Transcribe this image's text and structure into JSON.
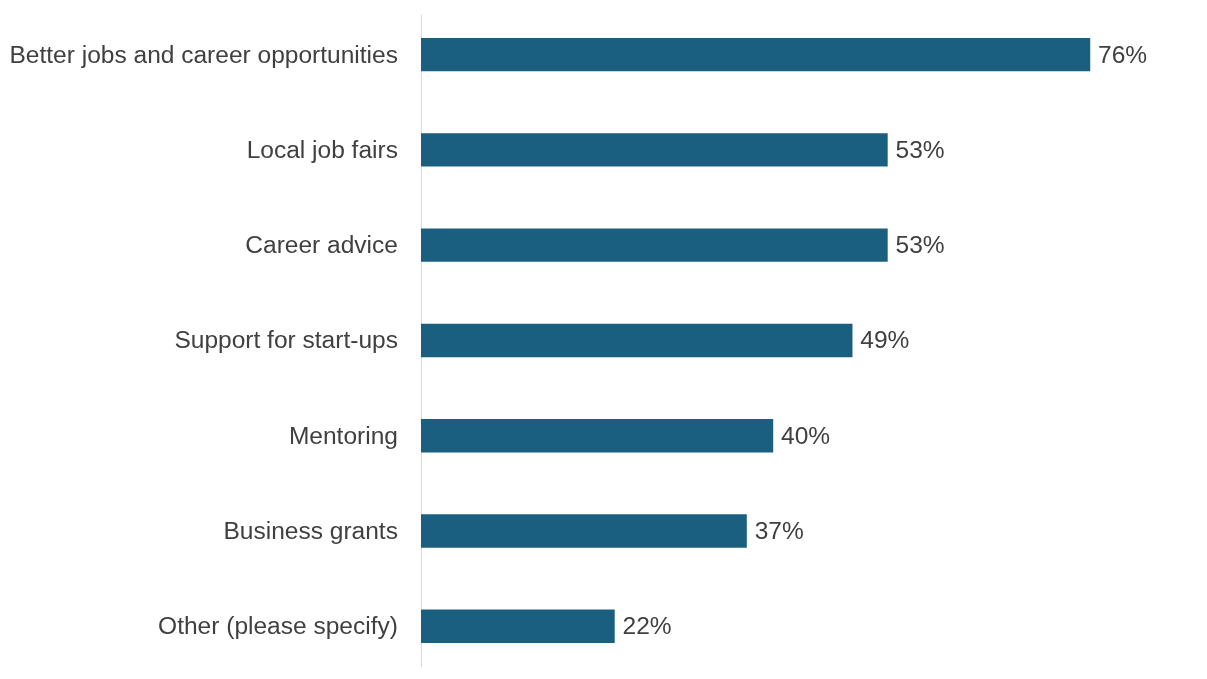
{
  "chart_data": {
    "type": "bar",
    "orientation": "horizontal",
    "categories": [
      "Better jobs and career opportunities",
      "Local job fairs",
      "Career advice",
      "Support for start-ups",
      "Mentoring",
      "Business grants",
      "Other (please specify)"
    ],
    "values": [
      76,
      53,
      53,
      49,
      40,
      37,
      22
    ],
    "value_labels": [
      "76%",
      "53%",
      "53%",
      "49%",
      "40%",
      "37%",
      "22%"
    ],
    "color": "#1a5e80",
    "grid": false
  }
}
